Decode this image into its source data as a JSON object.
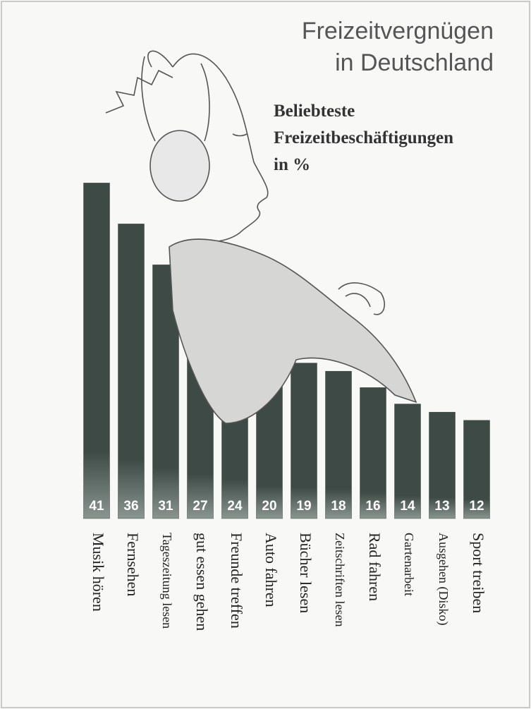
{
  "chart_data": {
    "type": "bar",
    "title": [
      "Freizeitvergnügen",
      "in Deutschland"
    ],
    "subtitle": [
      "Beliebteste",
      "Freizeitbeschäftigungen",
      "in %"
    ],
    "categories": [
      "Musik hören",
      "Fernsehen",
      "Tageszeitung lesen",
      "gut essen gehen",
      "Freunde treffen",
      "Auto fahren",
      "Bücher lesen",
      "Zeitschriften lesen",
      "Rad fahren",
      "Gartenarbeit",
      "Ausgehen (Disko)",
      "Sport treiben"
    ],
    "values": [
      41,
      36,
      31,
      27,
      24,
      20,
      19,
      18,
      16,
      14,
      13,
      12
    ],
    "color": "#3d4a45"
  }
}
